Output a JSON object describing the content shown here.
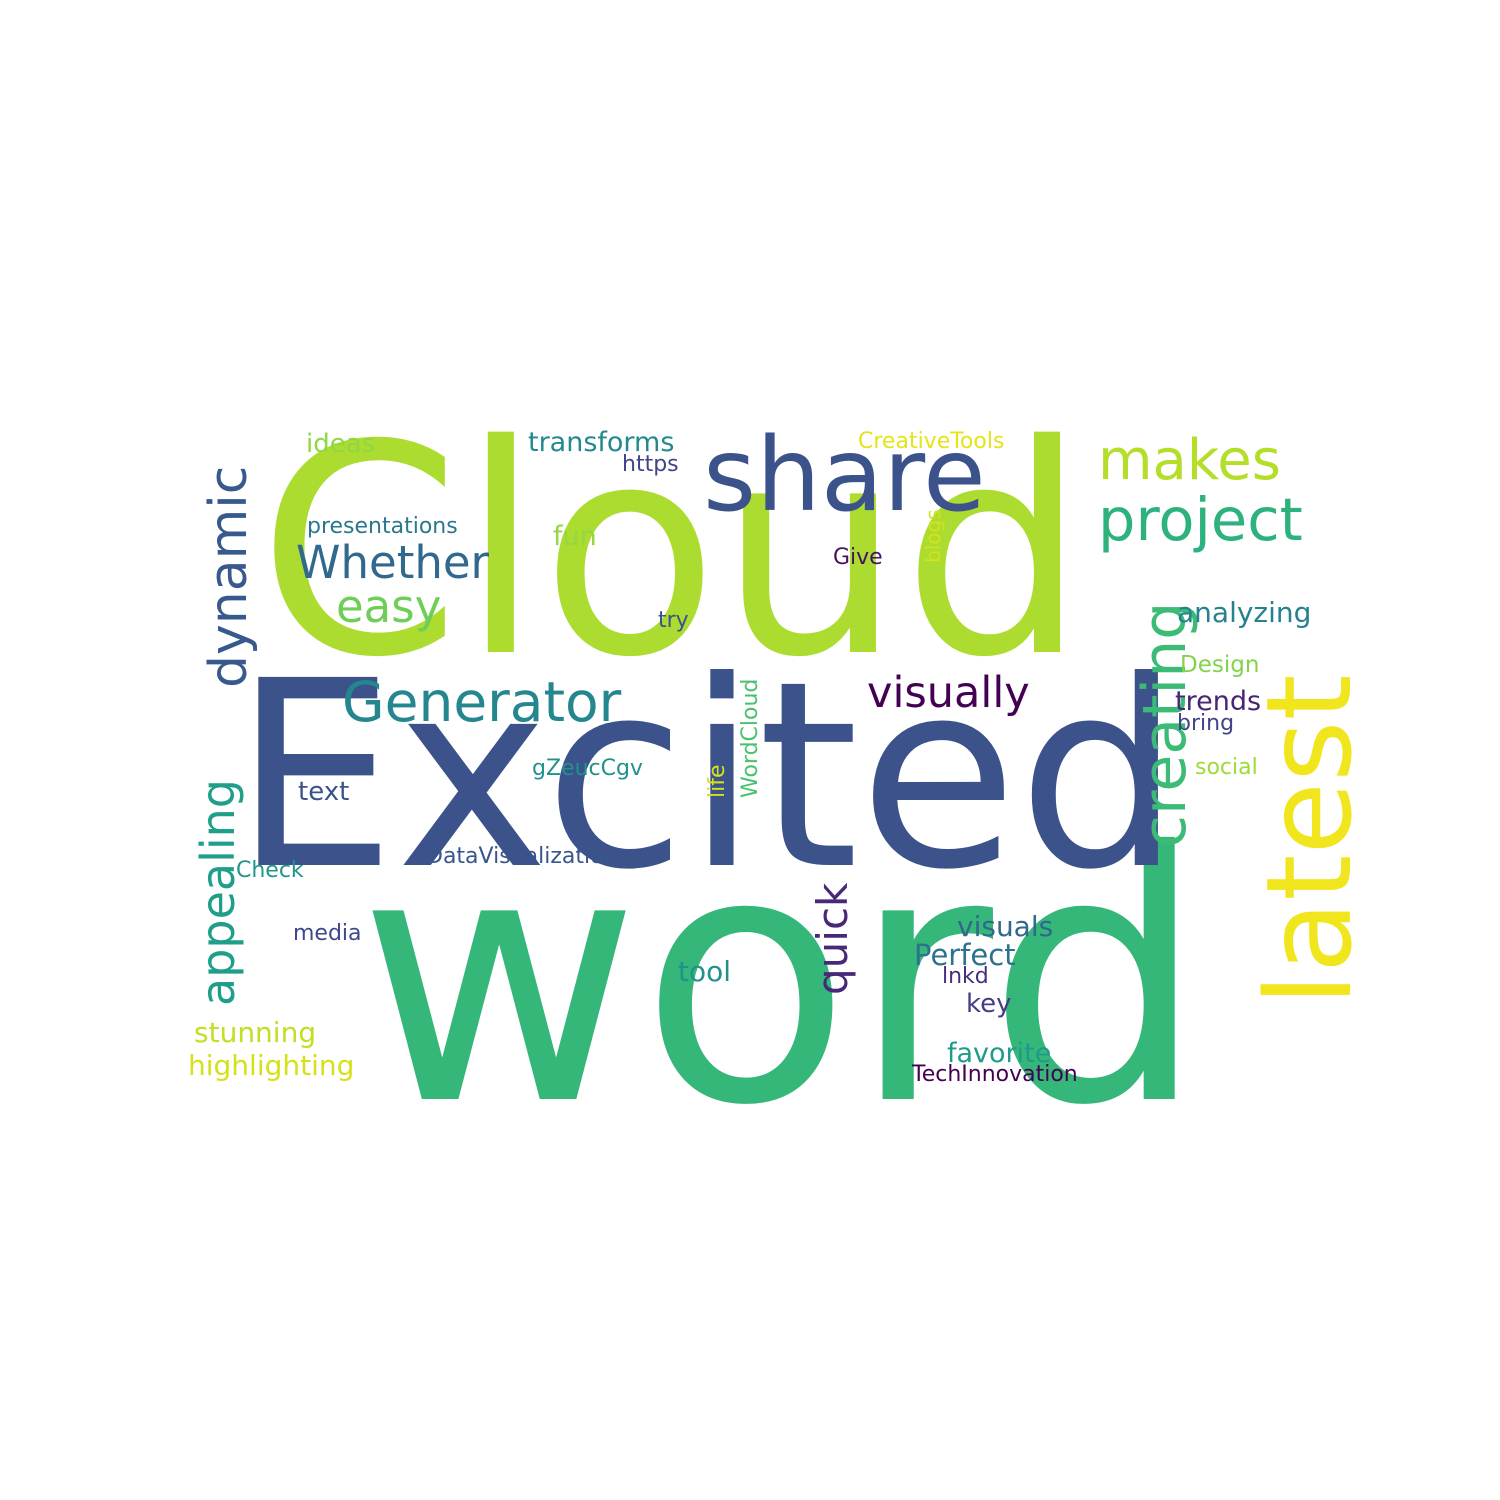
{
  "words": [
    {
      "text": "word",
      "color": "#35b779"
    },
    {
      "text": "Cloud",
      "color": "#addc30"
    },
    {
      "text": "Excited",
      "color": "#3b528b"
    },
    {
      "text": "share",
      "color": "#3b528b"
    },
    {
      "text": "latest",
      "color": "#f1e51d"
    },
    {
      "text": "makes",
      "color": "#b5de2b"
    },
    {
      "text": "project",
      "color": "#2db27d"
    },
    {
      "text": "creating",
      "color": "#3bbb75"
    },
    {
      "text": "dynamic",
      "color": "#38598c"
    },
    {
      "text": "Generator",
      "color": "#24868e"
    },
    {
      "text": "Whether",
      "color": "#31688e"
    },
    {
      "text": "easy",
      "color": "#6ece58"
    },
    {
      "text": "visually",
      "color": "#440154"
    },
    {
      "text": "quick",
      "color": "#482878"
    },
    {
      "text": "appealing",
      "color": "#1f9e89"
    },
    {
      "text": "ideas",
      "color": "#8fd744"
    },
    {
      "text": "transforms",
      "color": "#23898e"
    },
    {
      "text": "CreativeTools",
      "color": "#e5e419"
    },
    {
      "text": "https",
      "color": "#414487"
    },
    {
      "text": "presentations",
      "color": "#2a788e"
    },
    {
      "text": "fun",
      "color": "#93d741"
    },
    {
      "text": "blogs",
      "color": "#d2e21b"
    },
    {
      "text": "Give",
      "color": "#471164"
    },
    {
      "text": "try",
      "color": "#3b528b"
    },
    {
      "text": "analyzing",
      "color": "#26828e"
    },
    {
      "text": "Design",
      "color": "#84d44b"
    },
    {
      "text": "trends",
      "color": "#482475"
    },
    {
      "text": "bring",
      "color": "#414487"
    },
    {
      "text": "social",
      "color": "#a0da39"
    },
    {
      "text": "WordCloud",
      "color": "#4ac16d"
    },
    {
      "text": "life",
      "color": "#d8e219"
    },
    {
      "text": "gZeucCgv",
      "color": "#21918c"
    },
    {
      "text": "text",
      "color": "#3b528b"
    },
    {
      "text": "DataVisualization",
      "color": "#39568c"
    },
    {
      "text": "Check",
      "color": "#1f968b"
    },
    {
      "text": "media",
      "color": "#3e4989"
    },
    {
      "text": "visuals",
      "color": "#31688e"
    },
    {
      "text": "Perfect",
      "color": "#2c728e"
    },
    {
      "text": "lnkd",
      "color": "#46307e"
    },
    {
      "text": "tool",
      "color": "#21918c"
    },
    {
      "text": "key",
      "color": "#433e85"
    },
    {
      "text": "stunning",
      "color": "#c2df23"
    },
    {
      "text": "highlighting",
      "color": "#d5e21a"
    },
    {
      "text": "favorite",
      "color": "#1e9b8a"
    },
    {
      "text": "TechInnovation",
      "color": "#440154"
    }
  ]
}
